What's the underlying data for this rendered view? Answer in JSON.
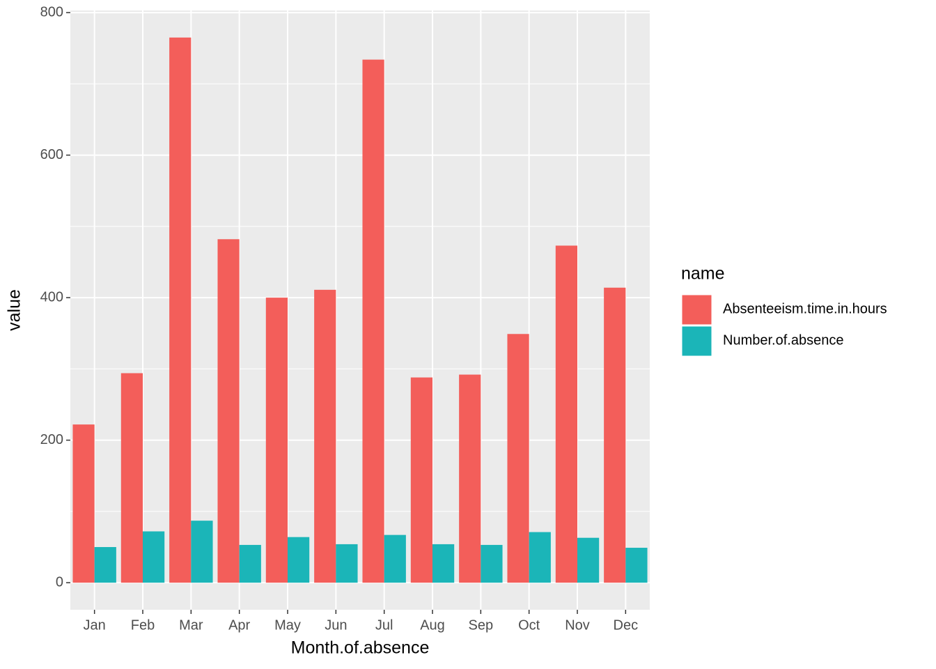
{
  "chart_data": {
    "type": "bar",
    "x_label": "Month.of.absence",
    "y_label": "value",
    "categories": [
      "Jan",
      "Feb",
      "Mar",
      "Apr",
      "May",
      "Jun",
      "Jul",
      "Aug",
      "Sep",
      "Oct",
      "Nov",
      "Dec"
    ],
    "series": [
      {
        "name": "Absenteeism.time.in.hours",
        "color": "#f35e5a",
        "values": [
          222,
          294,
          765,
          482,
          400,
          411,
          734,
          288,
          292,
          349,
          473,
          414
        ]
      },
      {
        "name": "Number.of.absence",
        "color": "#1bb5b8",
        "values": [
          50,
          72,
          87,
          53,
          64,
          54,
          67,
          54,
          53,
          71,
          63,
          49
        ]
      }
    ],
    "legend_title": "name",
    "legend": "right",
    "ylim": [
      -38,
      803
    ],
    "yticks": [
      0,
      200,
      400,
      600,
      800
    ],
    "yminor": [
      100,
      300,
      500,
      700
    ],
    "grid": true
  }
}
